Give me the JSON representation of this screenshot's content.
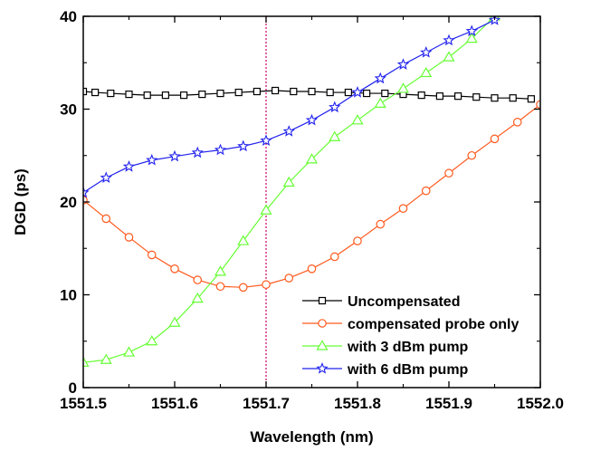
{
  "chart_data": {
    "type": "line",
    "title": "",
    "xlabel": "Wavelength (nm)",
    "ylabel": "DGD (ps)",
    "xlim": [
      1551.5,
      1552.0
    ],
    "ylim": [
      0,
      40
    ],
    "xticks": [
      "1551.5",
      "1551.6",
      "1551.7",
      "1551.8",
      "1551.9",
      "1552.0"
    ],
    "xtick_values": [
      1551.5,
      1551.6,
      1551.7,
      1551.8,
      1551.9,
      1552.0
    ],
    "yticks": [
      "0",
      "10",
      "20",
      "30",
      "40"
    ],
    "ytick_values": [
      0,
      10,
      20,
      30,
      40
    ],
    "grid": false,
    "legend_position": "bottom-right",
    "reference_line": {
      "x": 1551.7,
      "color": "#cc0066",
      "style": "dotted"
    },
    "series": [
      {
        "name": "Uncompensated",
        "color": "#000000",
        "marker": "square",
        "x": [
          1551.5,
          1551.513,
          1551.53,
          1551.55,
          1551.57,
          1551.59,
          1551.61,
          1551.63,
          1551.65,
          1551.67,
          1551.69,
          1551.71,
          1551.73,
          1551.75,
          1551.77,
          1551.79,
          1551.81,
          1551.83,
          1551.85,
          1551.87,
          1551.89,
          1551.91,
          1551.93,
          1551.95,
          1551.97,
          1551.99
        ],
        "y": [
          31.9,
          31.8,
          31.7,
          31.6,
          31.5,
          31.5,
          31.5,
          31.6,
          31.7,
          31.8,
          31.9,
          32.0,
          31.9,
          31.9,
          31.8,
          31.8,
          31.7,
          31.7,
          31.6,
          31.5,
          31.4,
          31.4,
          31.3,
          31.2,
          31.2,
          31.1
        ]
      },
      {
        "name": "compensated probe only",
        "color": "#ff5a1e",
        "marker": "circle",
        "x": [
          1551.5,
          1551.525,
          1551.55,
          1551.575,
          1551.6,
          1551.625,
          1551.65,
          1551.675,
          1551.7,
          1551.725,
          1551.75,
          1551.775,
          1551.8,
          1551.825,
          1551.85,
          1551.875,
          1551.9,
          1551.925,
          1551.95,
          1551.975,
          1552.0
        ],
        "y": [
          20.2,
          18.2,
          16.2,
          14.3,
          12.8,
          11.6,
          10.9,
          10.8,
          11.1,
          11.8,
          12.8,
          14.1,
          15.8,
          17.6,
          19.3,
          21.2,
          23.1,
          25.0,
          26.8,
          28.6,
          30.5
        ]
      },
      {
        "name": "with 3 dBm pump",
        "color": "#66ff33",
        "marker": "triangle",
        "x": [
          1551.5,
          1551.525,
          1551.55,
          1551.575,
          1551.6,
          1551.625,
          1551.65,
          1551.675,
          1551.7,
          1551.725,
          1551.75,
          1551.775,
          1551.8,
          1551.825,
          1551.85,
          1551.875,
          1551.9,
          1551.925,
          1551.95
        ],
        "y": [
          2.7,
          3.0,
          3.8,
          5.0,
          7.0,
          9.6,
          12.5,
          15.8,
          19.1,
          22.1,
          24.6,
          27.0,
          28.8,
          30.6,
          32.2,
          33.9,
          35.6,
          37.6,
          40.0
        ]
      },
      {
        "name": "with 6 dBm pump",
        "color": "#2222ee",
        "marker": "star",
        "x": [
          1551.5,
          1551.525,
          1551.55,
          1551.575,
          1551.6,
          1551.625,
          1551.65,
          1551.675,
          1551.7,
          1551.725,
          1551.75,
          1551.775,
          1551.8,
          1551.825,
          1551.85,
          1551.875,
          1551.9,
          1551.925,
          1551.95
        ],
        "y": [
          21.0,
          22.6,
          23.8,
          24.5,
          24.9,
          25.3,
          25.6,
          26.0,
          26.6,
          27.6,
          28.8,
          30.2,
          31.8,
          33.3,
          34.8,
          36.1,
          37.4,
          38.4,
          39.6
        ]
      }
    ]
  }
}
